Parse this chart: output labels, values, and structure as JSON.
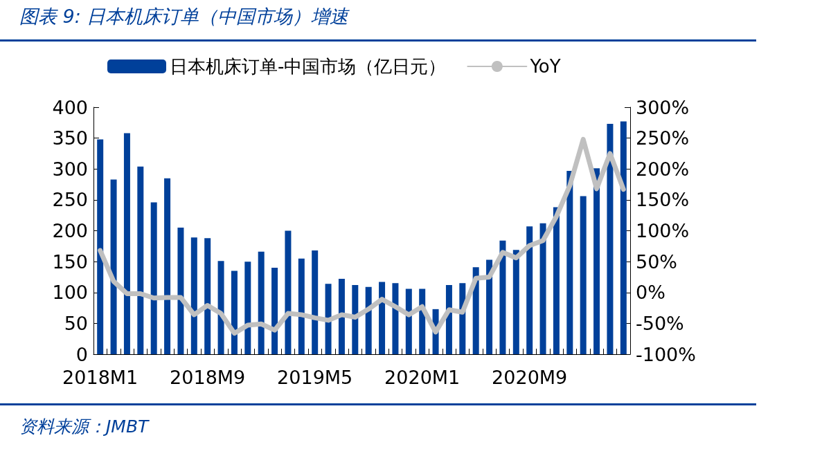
{
  "chart_data": {
    "type": "bar",
    "title": "图表 9:  日本机床订单（中国市场）增速",
    "categories": [
      "2018M1",
      null,
      null,
      null,
      null,
      null,
      null,
      null,
      "2018M9",
      null,
      null,
      null,
      null,
      null,
      null,
      null,
      "2019M5",
      null,
      null,
      null,
      null,
      null,
      null,
      null,
      "2020M1",
      null,
      null,
      null,
      null,
      null,
      null,
      null,
      "2020M9",
      null,
      null,
      null,
      null,
      null,
      null,
      null
    ],
    "series": [
      {
        "name": "日本机床订单-中国市场（亿日元）",
        "color": "#00409a",
        "values": [
          348,
          283,
          358,
          304,
          246,
          285,
          205,
          189,
          188,
          151,
          135,
          150,
          166,
          140,
          200,
          155,
          168,
          114,
          122,
          112,
          109,
          117,
          115,
          106,
          106,
          73,
          112,
          115,
          141,
          153,
          184,
          169,
          207,
          212,
          238,
          297,
          256,
          301,
          373,
          377
        ]
      },
      {
        "name": "YoY",
        "type": "line",
        "axis": "y2",
        "color": "#c0c0c0",
        "values": [
          68,
          18,
          -2,
          -2,
          -9,
          -8,
          -8,
          -36,
          -21,
          -34,
          -66,
          -53,
          -51,
          -61,
          -34,
          -36,
          -41,
          -45,
          -36,
          -40,
          -27,
          -11,
          -23,
          -36,
          -23,
          -64,
          -28,
          -32,
          23,
          25,
          65,
          56,
          76,
          84,
          123,
          173,
          248,
          168,
          225,
          167
        ]
      }
    ],
    "ylim": [
      0,
      400
    ],
    "yticks": [
      0,
      50,
      100,
      150,
      200,
      250,
      300,
      350,
      400
    ],
    "y2lim": [
      -100,
      300
    ],
    "y2ticks": [
      {
        "value": -100,
        "label": "-100%"
      },
      {
        "value": -50,
        "label": "-50%"
      },
      {
        "value": 0,
        "label": "0%"
      },
      {
        "value": 50,
        "label": "50%"
      },
      {
        "value": 100,
        "label": "100%"
      },
      {
        "value": 150,
        "label": "150%"
      },
      {
        "value": 200,
        "label": "200%"
      },
      {
        "value": 250,
        "label": "250%"
      },
      {
        "value": 300,
        "label": "300%"
      }
    ],
    "grid": false,
    "legend": "top",
    "marker": "none",
    "line_style": "solid",
    "annotations": [
      "资料来源：JMBT"
    ]
  }
}
